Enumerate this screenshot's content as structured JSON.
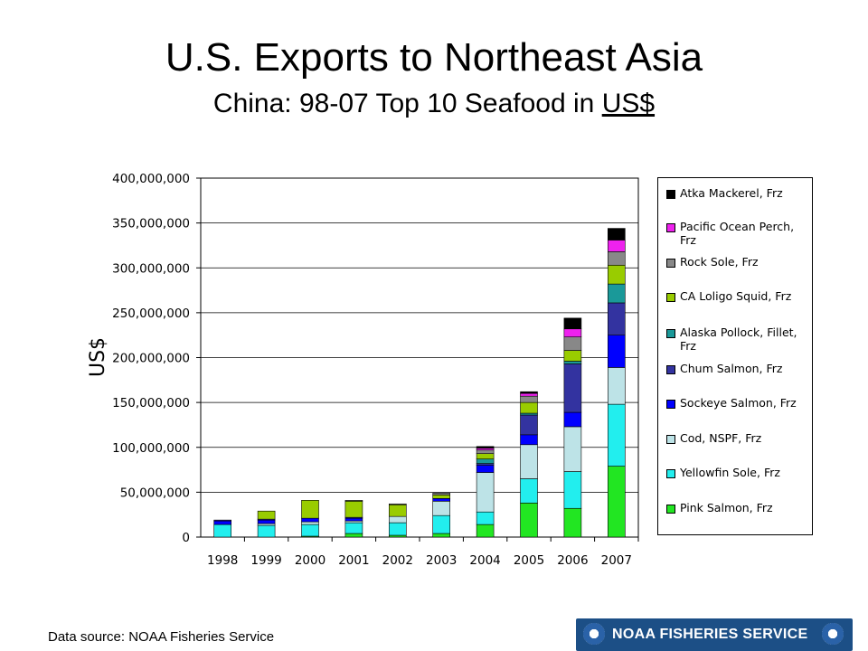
{
  "title": "U.S. Exports to Northeast Asia",
  "subtitle_prefix": "China: 98-07 Top 10 Seafood in ",
  "subtitle_unit": "US$",
  "source_note": "Data source: NOAA Fisheries Service",
  "banner": {
    "text": "NOAA FISHERIES SERVICE",
    "left_logo": "doc-seal-icon",
    "right_logo": "noaa-logo-icon",
    "color": "#1c4f86"
  },
  "chart_data": {
    "type": "bar",
    "stacked": true,
    "ylabel": "US$",
    "xlabel": "",
    "ylim": [
      0,
      400000000
    ],
    "yticks": [
      0,
      50000000,
      100000000,
      150000000,
      200000000,
      250000000,
      300000000,
      350000000,
      400000000
    ],
    "ytick_labels": [
      "0",
      "50,000,000",
      "100,000,000",
      "150,000,000",
      "200,000,000",
      "250,000,000",
      "300,000,000",
      "350,000,000",
      "400,000,000"
    ],
    "grid": "horizontal",
    "legend_position": "right",
    "categories": [
      "1998",
      "1999",
      "2000",
      "2001",
      "2002",
      "2003",
      "2004",
      "2005",
      "2006",
      "2007"
    ],
    "series": [
      {
        "name": "Pink Salmon, Frz",
        "color": "#22e622",
        "values": [
          0,
          0,
          1000000,
          4000000,
          2000000,
          4000000,
          14000000,
          38000000,
          32000000,
          79000000
        ]
      },
      {
        "name": "Yellowfin Sole, Frz",
        "color": "#22eeee",
        "values": [
          14000000,
          13000000,
          13000000,
          12000000,
          14000000,
          20000000,
          14000000,
          27000000,
          41000000,
          69000000
        ]
      },
      {
        "name": "Cod, NSPF, Frz",
        "color": "#bde3e7",
        "values": [
          0,
          2000000,
          3000000,
          2000000,
          7000000,
          16000000,
          44000000,
          38000000,
          50000000,
          41000000
        ]
      },
      {
        "name": "Sockeye Salmon, Frz",
        "color": "#0000ff",
        "values": [
          4000000,
          4000000,
          4000000,
          3000000,
          0,
          3000000,
          8000000,
          11000000,
          16000000,
          36000000
        ]
      },
      {
        "name": "Chum Salmon, Frz",
        "color": "#3333a0",
        "values": [
          1000000,
          1000000,
          0,
          1000000,
          0,
          0,
          2000000,
          22000000,
          54000000,
          36000000
        ]
      },
      {
        "name": "Alaska Pollock, Fillet, Frz",
        "color": "#1a9999",
        "values": [
          0,
          0,
          0,
          0,
          0,
          0,
          5000000,
          2000000,
          3000000,
          21000000
        ]
      },
      {
        "name": "CA Loligo Squid, Frz",
        "color": "#99cc00",
        "values": [
          0,
          9000000,
          20000000,
          18000000,
          13000000,
          4000000,
          6000000,
          12000000,
          12000000,
          21000000
        ]
      },
      {
        "name": "Rock Sole, Frz",
        "color": "#888888",
        "values": [
          0,
          0,
          0,
          1000000,
          1000000,
          2000000,
          4000000,
          7000000,
          15000000,
          15000000
        ]
      },
      {
        "name": "Pacific Ocean Perch, Frz",
        "color": "#ee22ee",
        "values": [
          0,
          0,
          0,
          0,
          0,
          0,
          2000000,
          3000000,
          9000000,
          13000000
        ]
      },
      {
        "name": "Atka Mackerel, Frz",
        "color": "#000000",
        "values": [
          0,
          0,
          0,
          0,
          0,
          0,
          2000000,
          2000000,
          12000000,
          13000000
        ]
      }
    ]
  }
}
